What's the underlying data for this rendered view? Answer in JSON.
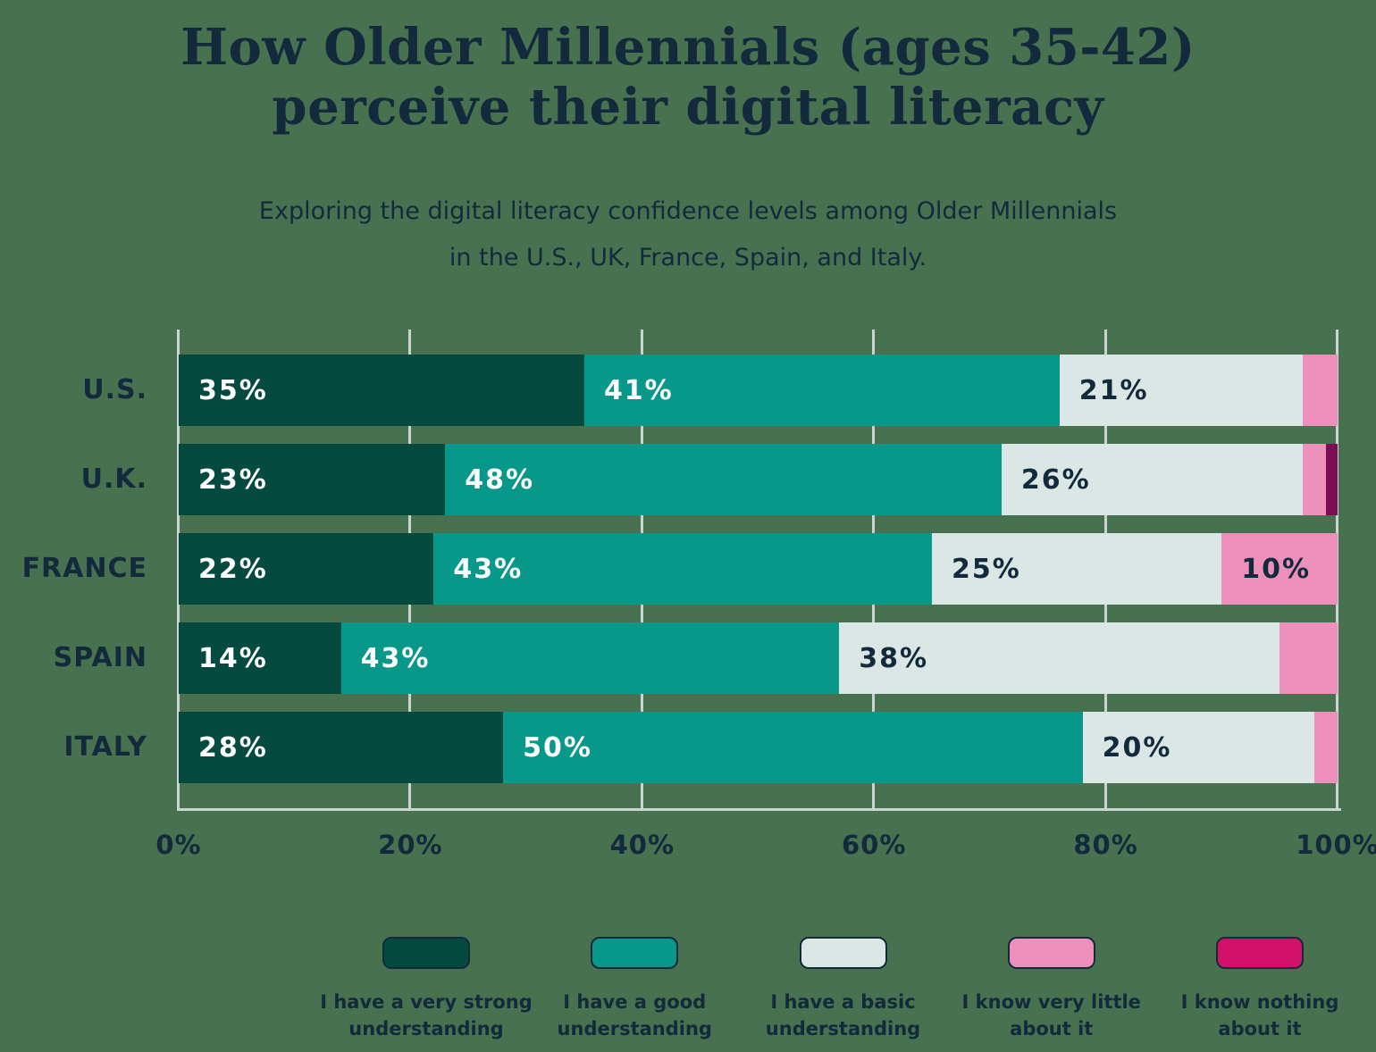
{
  "page": {
    "background": "#47714F",
    "text_color": "#13293C"
  },
  "header": {
    "title_line1": "How Older Millennials (ages 35-42)",
    "title_line2": "perceive their digital literacy",
    "subtitle_line1": "Exploring the digital literacy confidence levels among Older Millennials",
    "subtitle_line2": "in the U.S., UK, France, Spain, and Italy."
  },
  "chart_data": {
    "type": "bar",
    "orientation": "horizontal",
    "stacked": true,
    "units": "percent",
    "xlim": [
      0,
      100
    ],
    "grid": true,
    "grid_color": "#CAD4D0",
    "x_ticks": [
      {
        "value": 0,
        "label": "0%"
      },
      {
        "value": 20,
        "label": "20%"
      },
      {
        "value": 40,
        "label": "40%"
      },
      {
        "value": 60,
        "label": "60%"
      },
      {
        "value": 80,
        "label": "80%"
      },
      {
        "value": 100,
        "label": "100%"
      }
    ],
    "categories": [
      "U.S.",
      "U.K.",
      "FRANCE",
      "SPAIN",
      "ITALY"
    ],
    "series": [
      {
        "name": "I have a very strong understanding",
        "color": "#054A3F",
        "label_color": "#FFFFFF",
        "values": [
          35,
          23,
          22,
          14,
          28
        ]
      },
      {
        "name": "I have a good understanding",
        "color": "#089889",
        "label_color": "#FFFFFF",
        "values": [
          41,
          48,
          43,
          43,
          50
        ]
      },
      {
        "name": "I have a basic understanding",
        "color": "#DBE7E4",
        "label_color": "#13293C",
        "values": [
          21,
          26,
          25,
          38,
          20
        ]
      },
      {
        "name": "I know very little about it",
        "color": "#EE90BC",
        "label_color": "#13293C",
        "values": [
          3,
          2,
          10,
          5,
          2
        ]
      },
      {
        "name": "I know nothing about it",
        "color": "#7B0E52",
        "label_color": "#FFFFFF",
        "values": [
          0,
          1,
          0,
          0,
          0
        ]
      }
    ],
    "label_format": "{v}%",
    "min_label_value": 10,
    "legend_position": "bottom"
  },
  "legend": {
    "items": [
      {
        "line1": "I have a very strong",
        "line2": "understanding",
        "color": "#054A3F"
      },
      {
        "line1": "I have a good",
        "line2": "understanding",
        "color": "#089889"
      },
      {
        "line1": "I have a basic",
        "line2": "understanding",
        "color": "#DBE7E4"
      },
      {
        "line1": "I know very little",
        "line2": "about it",
        "color": "#EE90BC"
      },
      {
        "line1": "I know nothing",
        "line2": "about it",
        "color": "#D2116A"
      }
    ]
  }
}
